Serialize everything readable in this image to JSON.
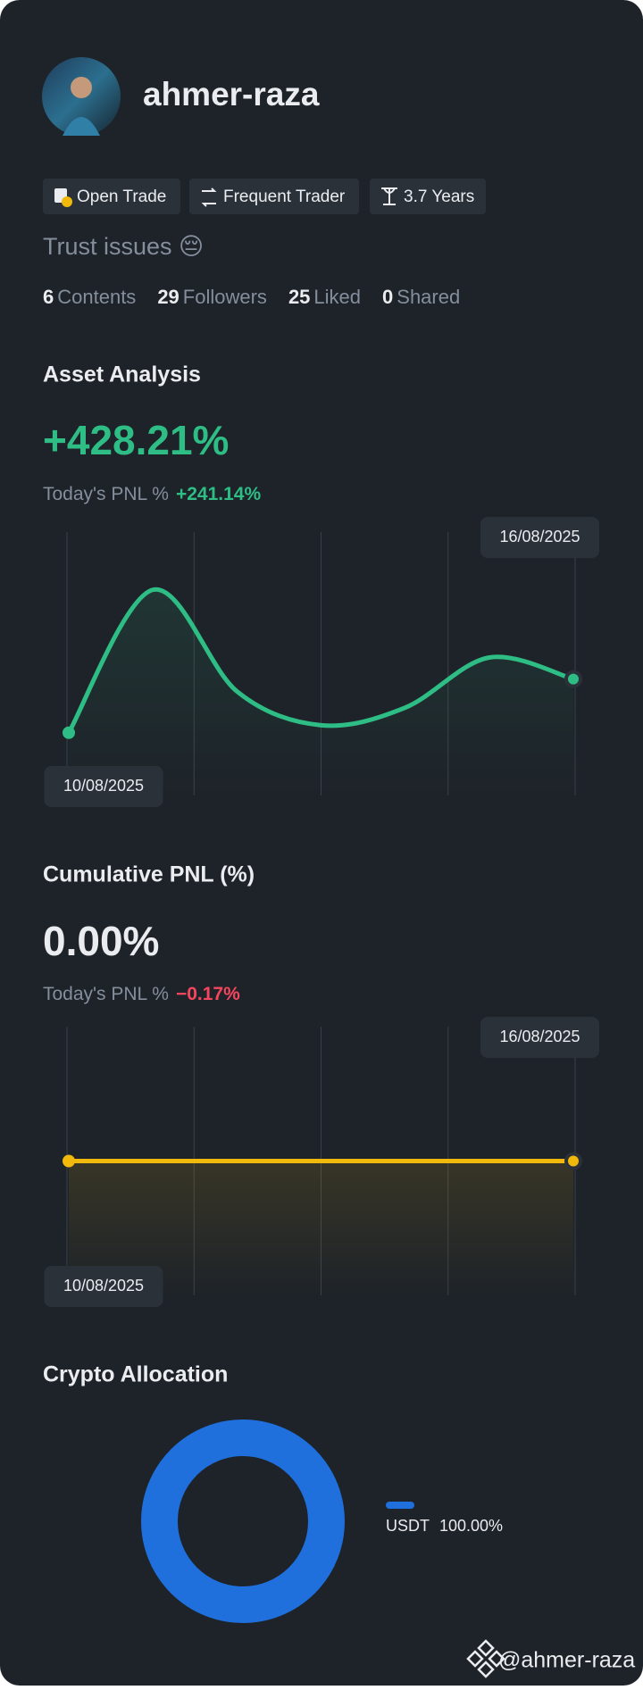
{
  "profile": {
    "username": "ahmer-raza",
    "badges": [
      "Open Trade",
      "Frequent Trader",
      "3.7 Years"
    ],
    "bio": "Trust issues 😔",
    "stats": [
      {
        "value": 6,
        "label": "Contents"
      },
      {
        "value": 29,
        "label": "Followers"
      },
      {
        "value": 25,
        "label": "Liked"
      },
      {
        "value": 0,
        "label": "Shared"
      }
    ]
  },
  "sections": [
    {
      "title": "Asset Analysis",
      "headline": "+428.21%",
      "subtitle": "Today's PNL %",
      "today": "+241.14%"
    },
    {
      "title": "Cumulative PNL (%)",
      "headline": "0.00%",
      "subtitle": "Today's PNL %",
      "today": "−0.17%"
    },
    {
      "title": "Crypto Allocation"
    }
  ],
  "chart_data": [
    {
      "type": "line",
      "categories": [
        "10/08/2025",
        null,
        null,
        null,
        null,
        null,
        "16/08/2025"
      ],
      "values": [
        0,
        1140,
        330,
        60,
        200,
        600,
        428.21
      ],
      "color": "#2ebd85",
      "ylim": [
        -500,
        1600
      ]
    },
    {
      "type": "line",
      "categories": [
        "10/08/2025",
        null,
        null,
        null,
        null,
        null,
        "16/08/2025"
      ],
      "values": [
        0,
        0,
        0,
        0,
        0,
        0,
        0
      ],
      "color": "#f0b90b",
      "ylim": [
        -1,
        1
      ]
    },
    {
      "type": "pie",
      "categories": [
        "USDT"
      ],
      "values": [
        100
      ],
      "value_labels": [
        "100.00%"
      ],
      "colors": [
        "#1f6fdc"
      ]
    }
  ],
  "footer": {
    "handle": "@ahmer-raza"
  }
}
